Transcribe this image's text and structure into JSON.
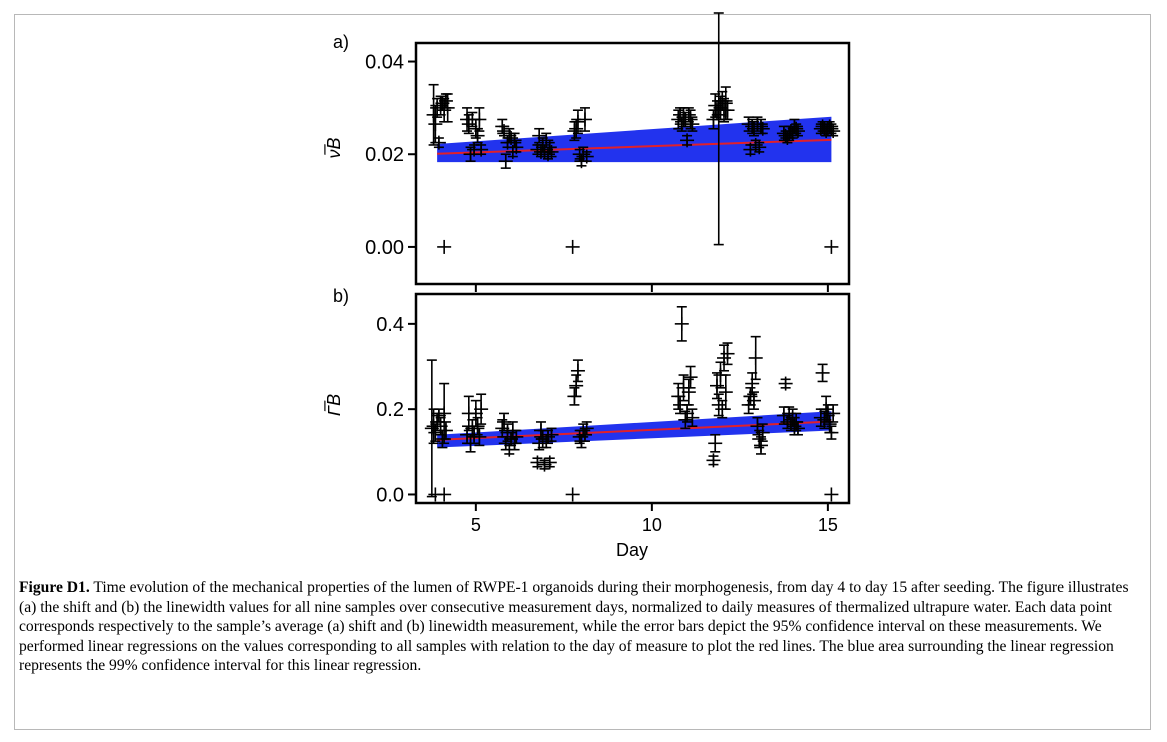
{
  "chart_data": [
    {
      "type": "scatter",
      "panel_label": "a)",
      "ylabel": "ν̅B",
      "xlabel": "",
      "xlim": [
        3.3,
        15.6
      ],
      "ylim": [
        -0.008,
        0.044
      ],
      "x_ticks": [
        5,
        10,
        15
      ],
      "y_ticks": [
        0.0,
        0.02,
        0.04
      ],
      "y_tick_labels": [
        "0.00",
        "0.02",
        "0.04"
      ],
      "show_x_tick_labels": false,
      "grid": false,
      "regression": {
        "x": [
          3.9,
          15.1
        ],
        "y": [
          0.0201,
          0.0231
        ],
        "color": "#e0202a"
      },
      "confidence_band": {
        "x": [
          3.9,
          15.1
        ],
        "upper": [
          0.0222,
          0.0281
        ],
        "lower": [
          0.0183,
          0.0183
        ],
        "color": "#2233ee"
      },
      "points": [
        {
          "x": 3.8,
          "y": 0.0285,
          "err": 0.0065
        },
        {
          "x": 3.85,
          "y": 0.0265,
          "err": 0.004
        },
        {
          "x": 3.9,
          "y": 0.03,
          "err": 0.002
        },
        {
          "x": 3.95,
          "y": 0.0225,
          "err": 0.001
        },
        {
          "x": 4.0,
          "y": 0.0305,
          "err": 0.002
        },
        {
          "x": 4.05,
          "y": 0.031,
          "err": 0.0015
        },
        {
          "x": 4.1,
          "y": 0.0295,
          "err": 0.0025
        },
        {
          "x": 4.15,
          "y": 0.0315,
          "err": 0.0015
        },
        {
          "x": 4.2,
          "y": 0.03,
          "err": 0.003
        },
        {
          "x": 4.1,
          "y": 0.0,
          "err": 0
        },
        {
          "x": 4.75,
          "y": 0.0275,
          "err": 0.0025
        },
        {
          "x": 4.8,
          "y": 0.0265,
          "err": 0.002
        },
        {
          "x": 4.85,
          "y": 0.02,
          "err": 0.0015
        },
        {
          "x": 4.9,
          "y": 0.0275,
          "err": 0.0015
        },
        {
          "x": 4.95,
          "y": 0.021,
          "err": 0.001
        },
        {
          "x": 5.0,
          "y": 0.0255,
          "err": 0.002
        },
        {
          "x": 5.05,
          "y": 0.024,
          "err": 0.0015
        },
        {
          "x": 5.1,
          "y": 0.0275,
          "err": 0.0025
        },
        {
          "x": 5.15,
          "y": 0.021,
          "err": 0.001
        },
        {
          "x": 5.75,
          "y": 0.026,
          "err": 0.0015
        },
        {
          "x": 5.8,
          "y": 0.025,
          "err": 0.001
        },
        {
          "x": 5.85,
          "y": 0.0185,
          "err": 0.0015
        },
        {
          "x": 5.9,
          "y": 0.0225,
          "err": 0.001
        },
        {
          "x": 5.95,
          "y": 0.024,
          "err": 0.0015
        },
        {
          "x": 6.0,
          "y": 0.0235,
          "err": 0.001
        },
        {
          "x": 6.05,
          "y": 0.0205,
          "err": 0.001
        },
        {
          "x": 6.1,
          "y": 0.023,
          "err": 0.0015
        },
        {
          "x": 6.15,
          "y": 0.0215,
          "err": 0.001
        },
        {
          "x": 6.75,
          "y": 0.021,
          "err": 0.001
        },
        {
          "x": 6.8,
          "y": 0.024,
          "err": 0.0015
        },
        {
          "x": 6.85,
          "y": 0.0205,
          "err": 0.001
        },
        {
          "x": 6.9,
          "y": 0.022,
          "err": 0.0015
        },
        {
          "x": 6.95,
          "y": 0.0205,
          "err": 0.001
        },
        {
          "x": 7.0,
          "y": 0.023,
          "err": 0.0015
        },
        {
          "x": 7.05,
          "y": 0.02,
          "err": 0.001
        },
        {
          "x": 7.1,
          "y": 0.0215,
          "err": 0.001
        },
        {
          "x": 7.15,
          "y": 0.0205,
          "err": 0.001
        },
        {
          "x": 7.8,
          "y": 0.025,
          "err": 0.002
        },
        {
          "x": 7.85,
          "y": 0.0255,
          "err": 0.002
        },
        {
          "x": 7.9,
          "y": 0.027,
          "err": 0.0025
        },
        {
          "x": 7.95,
          "y": 0.02,
          "err": 0.001
        },
        {
          "x": 8.0,
          "y": 0.0185,
          "err": 0.001
        },
        {
          "x": 8.05,
          "y": 0.02,
          "err": 0.0015
        },
        {
          "x": 8.1,
          "y": 0.0275,
          "err": 0.0025
        },
        {
          "x": 8.15,
          "y": 0.0195,
          "err": 0.001
        },
        {
          "x": 7.75,
          "y": 0.0,
          "err": 0
        },
        {
          "x": 10.75,
          "y": 0.0275,
          "err": 0.002
        },
        {
          "x": 10.8,
          "y": 0.0285,
          "err": 0.0015
        },
        {
          "x": 10.85,
          "y": 0.0265,
          "err": 0.0015
        },
        {
          "x": 10.9,
          "y": 0.028,
          "err": 0.002
        },
        {
          "x": 10.95,
          "y": 0.0275,
          "err": 0.0015
        },
        {
          "x": 11.0,
          "y": 0.023,
          "err": 0.001
        },
        {
          "x": 11.05,
          "y": 0.0285,
          "err": 0.0015
        },
        {
          "x": 11.1,
          "y": 0.0275,
          "err": 0.002
        },
        {
          "x": 11.15,
          "y": 0.0265,
          "err": 0.0015
        },
        {
          "x": 11.75,
          "y": 0.0275,
          "err": 0.002
        },
        {
          "x": 11.8,
          "y": 0.0305,
          "err": 0.0025
        },
        {
          "x": 11.85,
          "y": 0.0295,
          "err": 0.002
        },
        {
          "x": 11.9,
          "y": 0.0285,
          "err": 0.028
        },
        {
          "x": 11.95,
          "y": 0.03,
          "err": 0.0025
        },
        {
          "x": 12.0,
          "y": 0.0315,
          "err": 0.002
        },
        {
          "x": 12.05,
          "y": 0.0295,
          "err": 0.0025
        },
        {
          "x": 12.1,
          "y": 0.031,
          "err": 0.0035
        },
        {
          "x": 12.15,
          "y": 0.0295,
          "err": 0.002
        },
        {
          "x": 12.75,
          "y": 0.0265,
          "err": 0.0015
        },
        {
          "x": 12.8,
          "y": 0.021,
          "err": 0.001
        },
        {
          "x": 12.85,
          "y": 0.026,
          "err": 0.0015
        },
        {
          "x": 12.9,
          "y": 0.0255,
          "err": 0.0015
        },
        {
          "x": 12.95,
          "y": 0.022,
          "err": 0.001
        },
        {
          "x": 13.0,
          "y": 0.0265,
          "err": 0.0015
        },
        {
          "x": 13.05,
          "y": 0.0215,
          "err": 0.001
        },
        {
          "x": 13.1,
          "y": 0.026,
          "err": 0.0015
        },
        {
          "x": 13.15,
          "y": 0.0255,
          "err": 0.001
        },
        {
          "x": 13.75,
          "y": 0.0245,
          "err": 0.0015
        },
        {
          "x": 13.8,
          "y": 0.024,
          "err": 0.001
        },
        {
          "x": 13.85,
          "y": 0.0235,
          "err": 0.001
        },
        {
          "x": 13.9,
          "y": 0.0245,
          "err": 0.0015
        },
        {
          "x": 13.95,
          "y": 0.025,
          "err": 0.001
        },
        {
          "x": 14.0,
          "y": 0.0245,
          "err": 0.001
        },
        {
          "x": 14.05,
          "y": 0.026,
          "err": 0.0015
        },
        {
          "x": 14.1,
          "y": 0.0255,
          "err": 0.001
        },
        {
          "x": 14.15,
          "y": 0.025,
          "err": 0.001
        },
        {
          "x": 14.8,
          "y": 0.0255,
          "err": 0.001
        },
        {
          "x": 14.85,
          "y": 0.026,
          "err": 0.001
        },
        {
          "x": 14.9,
          "y": 0.0255,
          "err": 0.001
        },
        {
          "x": 14.95,
          "y": 0.025,
          "err": 0.001
        },
        {
          "x": 15.0,
          "y": 0.0255,
          "err": 0.001
        },
        {
          "x": 15.05,
          "y": 0.026,
          "err": 0.001
        },
        {
          "x": 15.1,
          "y": 0.0255,
          "err": 0.001
        },
        {
          "x": 15.15,
          "y": 0.025,
          "err": 0.001
        },
        {
          "x": 15.1,
          "y": 0.0,
          "err": 0
        }
      ]
    },
    {
      "type": "scatter",
      "panel_label": "b)",
      "ylabel": "Γ̅B",
      "xlabel": "Day",
      "xlim": [
        3.3,
        15.6
      ],
      "ylim": [
        -0.02,
        0.47
      ],
      "x_ticks": [
        5,
        10,
        15
      ],
      "x_tick_labels": [
        "5",
        "10",
        "15"
      ],
      "y_ticks": [
        0.0,
        0.2,
        0.4
      ],
      "y_tick_labels": [
        "0.0",
        "0.2",
        "0.4"
      ],
      "show_x_tick_labels": true,
      "grid": false,
      "regression": {
        "x": [
          3.9,
          15.1
        ],
        "y": [
          0.128,
          0.171
        ],
        "color": "#e0202a"
      },
      "confidence_band": {
        "x": [
          3.9,
          15.1
        ],
        "upper": [
          0.14,
          0.195
        ],
        "lower": [
          0.11,
          0.15
        ],
        "color": "#2233ee"
      },
      "points": [
        {
          "x": 3.75,
          "y": 0.155,
          "err": 0.16
        },
        {
          "x": 3.8,
          "y": 0.16,
          "err": 0.04
        },
        {
          "x": 3.85,
          "y": 0.145,
          "err": 0.02
        },
        {
          "x": 3.9,
          "y": 0.17,
          "err": 0.02
        },
        {
          "x": 3.95,
          "y": 0.185,
          "err": 0.015
        },
        {
          "x": 4.0,
          "y": 0.16,
          "err": 0.02
        },
        {
          "x": 4.05,
          "y": 0.13,
          "err": 0.02
        },
        {
          "x": 4.1,
          "y": 0.19,
          "err": 0.07
        },
        {
          "x": 4.15,
          "y": 0.15,
          "err": 0.02
        },
        {
          "x": 4.1,
          "y": 0.0,
          "err": 0
        },
        {
          "x": 3.85,
          "y": 0.0,
          "err": 0
        },
        {
          "x": 4.75,
          "y": 0.14,
          "err": 0.02
        },
        {
          "x": 4.8,
          "y": 0.19,
          "err": 0.04
        },
        {
          "x": 4.85,
          "y": 0.12,
          "err": 0.02
        },
        {
          "x": 4.9,
          "y": 0.155,
          "err": 0.02
        },
        {
          "x": 4.95,
          "y": 0.14,
          "err": 0.02
        },
        {
          "x": 5.0,
          "y": 0.19,
          "err": 0.03
        },
        {
          "x": 5.05,
          "y": 0.16,
          "err": 0.02
        },
        {
          "x": 5.1,
          "y": 0.135,
          "err": 0.02
        },
        {
          "x": 5.15,
          "y": 0.2,
          "err": 0.035
        },
        {
          "x": 5.75,
          "y": 0.155,
          "err": 0.02
        },
        {
          "x": 5.8,
          "y": 0.17,
          "err": 0.02
        },
        {
          "x": 5.85,
          "y": 0.12,
          "err": 0.015
        },
        {
          "x": 5.9,
          "y": 0.145,
          "err": 0.02
        },
        {
          "x": 5.95,
          "y": 0.105,
          "err": 0.01
        },
        {
          "x": 6.0,
          "y": 0.13,
          "err": 0.015
        },
        {
          "x": 6.05,
          "y": 0.15,
          "err": 0.02
        },
        {
          "x": 6.1,
          "y": 0.12,
          "err": 0.015
        },
        {
          "x": 6.15,
          "y": 0.135,
          "err": 0.015
        },
        {
          "x": 6.75,
          "y": 0.075,
          "err": 0.01
        },
        {
          "x": 6.8,
          "y": 0.12,
          "err": 0.015
        },
        {
          "x": 6.85,
          "y": 0.15,
          "err": 0.02
        },
        {
          "x": 6.9,
          "y": 0.13,
          "err": 0.02
        },
        {
          "x": 6.95,
          "y": 0.07,
          "err": 0.01
        },
        {
          "x": 7.0,
          "y": 0.125,
          "err": 0.015
        },
        {
          "x": 7.05,
          "y": 0.135,
          "err": 0.015
        },
        {
          "x": 7.1,
          "y": 0.075,
          "err": 0.01
        },
        {
          "x": 7.15,
          "y": 0.14,
          "err": 0.015
        },
        {
          "x": 7.8,
          "y": 0.23,
          "err": 0.02
        },
        {
          "x": 7.85,
          "y": 0.255,
          "err": 0.025
        },
        {
          "x": 7.9,
          "y": 0.29,
          "err": 0.025
        },
        {
          "x": 7.95,
          "y": 0.135,
          "err": 0.015
        },
        {
          "x": 8.0,
          "y": 0.125,
          "err": 0.015
        },
        {
          "x": 8.05,
          "y": 0.15,
          "err": 0.015
        },
        {
          "x": 8.1,
          "y": 0.14,
          "err": 0.015
        },
        {
          "x": 8.15,
          "y": 0.155,
          "err": 0.015
        },
        {
          "x": 7.75,
          "y": 0.0,
          "err": 0
        },
        {
          "x": 10.75,
          "y": 0.23,
          "err": 0.03
        },
        {
          "x": 10.8,
          "y": 0.21,
          "err": 0.02
        },
        {
          "x": 10.85,
          "y": 0.4,
          "err": 0.04
        },
        {
          "x": 10.9,
          "y": 0.25,
          "err": 0.03
        },
        {
          "x": 10.95,
          "y": 0.175,
          "err": 0.02
        },
        {
          "x": 11.0,
          "y": 0.19,
          "err": 0.02
        },
        {
          "x": 11.05,
          "y": 0.24,
          "err": 0.03
        },
        {
          "x": 11.1,
          "y": 0.275,
          "err": 0.025
        },
        {
          "x": 11.15,
          "y": 0.18,
          "err": 0.02
        },
        {
          "x": 11.75,
          "y": 0.08,
          "err": 0.01
        },
        {
          "x": 11.8,
          "y": 0.12,
          "err": 0.02
        },
        {
          "x": 11.85,
          "y": 0.255,
          "err": 0.03
        },
        {
          "x": 11.9,
          "y": 0.21,
          "err": 0.025
        },
        {
          "x": 11.95,
          "y": 0.28,
          "err": 0.03
        },
        {
          "x": 12.0,
          "y": 0.2,
          "err": 0.02
        },
        {
          "x": 12.05,
          "y": 0.32,
          "err": 0.03
        },
        {
          "x": 12.1,
          "y": 0.24,
          "err": 0.04
        },
        {
          "x": 12.15,
          "y": 0.33,
          "err": 0.025
        },
        {
          "x": 12.75,
          "y": 0.21,
          "err": 0.02
        },
        {
          "x": 12.8,
          "y": 0.23,
          "err": 0.02
        },
        {
          "x": 12.85,
          "y": 0.26,
          "err": 0.025
        },
        {
          "x": 12.9,
          "y": 0.22,
          "err": 0.02
        },
        {
          "x": 12.95,
          "y": 0.32,
          "err": 0.05
        },
        {
          "x": 13.0,
          "y": 0.16,
          "err": 0.02
        },
        {
          "x": 13.05,
          "y": 0.13,
          "err": 0.02
        },
        {
          "x": 13.1,
          "y": 0.115,
          "err": 0.02
        },
        {
          "x": 13.15,
          "y": 0.145,
          "err": 0.02
        },
        {
          "x": 13.75,
          "y": 0.185,
          "err": 0.02
        },
        {
          "x": 13.8,
          "y": 0.26,
          "err": 0.01
        },
        {
          "x": 13.85,
          "y": 0.17,
          "err": 0.015
        },
        {
          "x": 13.9,
          "y": 0.19,
          "err": 0.015
        },
        {
          "x": 13.95,
          "y": 0.165,
          "err": 0.015
        },
        {
          "x": 14.0,
          "y": 0.18,
          "err": 0.02
        },
        {
          "x": 14.05,
          "y": 0.16,
          "err": 0.02
        },
        {
          "x": 14.1,
          "y": 0.17,
          "err": 0.02
        },
        {
          "x": 14.15,
          "y": 0.155,
          "err": 0.015
        },
        {
          "x": 14.8,
          "y": 0.18,
          "err": 0.02
        },
        {
          "x": 14.85,
          "y": 0.285,
          "err": 0.02
        },
        {
          "x": 14.9,
          "y": 0.175,
          "err": 0.02
        },
        {
          "x": 14.95,
          "y": 0.2,
          "err": 0.03
        },
        {
          "x": 15.0,
          "y": 0.19,
          "err": 0.02
        },
        {
          "x": 15.05,
          "y": 0.165,
          "err": 0.02
        },
        {
          "x": 15.1,
          "y": 0.145,
          "err": 0.015
        },
        {
          "x": 15.15,
          "y": 0.19,
          "err": 0.02
        },
        {
          "x": 15.1,
          "y": 0.0,
          "err": 0
        }
      ]
    }
  ],
  "colors": {
    "band": "#2233ee",
    "regression": "#e0202a",
    "marker": "#000000"
  },
  "caption": {
    "label": "Figure D1.",
    "text": " Time evolution of the mechanical properties of the lumen of RWPE-1 organoids during their morphogenesis, from day 4 to day 15 after seeding. The figure illustrates (a) the shift and (b) the linewidth values for all nine samples over consecutive measurement days, normalized to daily measures of thermalized ultrapure water. Each data point corresponds respectively to the sample’s average (a) shift and (b) linewidth measurement, while the error bars depict the 95% confidence interval on these measurements. We performed linear regressions on the values corresponding to all samples with relation to the day of measure to plot the red lines. The blue area surrounding the linear regression represents the 99% confidence interval for this linear regression."
  }
}
